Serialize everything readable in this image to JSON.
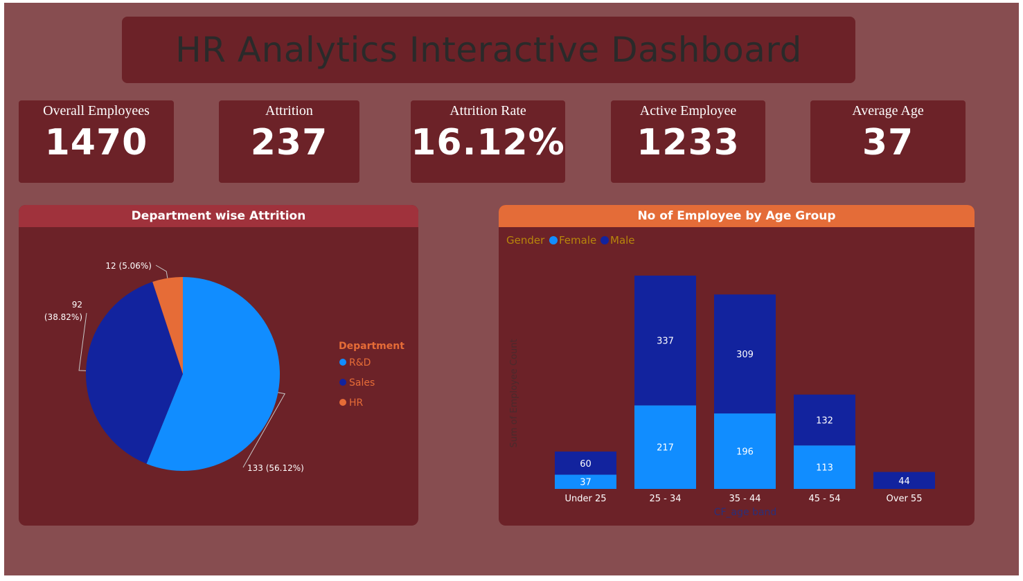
{
  "dashboard": {
    "title": "HR Analytics Interactive Dashboard"
  },
  "kpis": [
    {
      "label": "Overall Employees",
      "value": "1470"
    },
    {
      "label": "Attrition",
      "value": "237"
    },
    {
      "label": "Attrition Rate",
      "value": "16.12%"
    },
    {
      "label": "Active Employee",
      "value": "1233"
    },
    {
      "label": "Average Age",
      "value": "37"
    }
  ],
  "colors": {
    "background": "#874d50",
    "card": "#6c2228",
    "pie_header": "#a0323c",
    "bar_header": "#e46c38",
    "light_blue": "#118dff",
    "dark_blue": "#12239e",
    "orange": "#e66c37",
    "legend_label": "#b8860b"
  },
  "chart_data": [
    {
      "type": "pie",
      "title": "Department wise Attrition",
      "legend_title": "Department",
      "legend_position": "right",
      "slices": [
        {
          "label": "R&D",
          "value": 133,
          "data_label": "133 (56.12%)",
          "color": "#118dff"
        },
        {
          "label": "Sales",
          "value": 92,
          "data_label": "92 (38.82%)",
          "color": "#12239e"
        },
        {
          "label": "HR",
          "value": 12,
          "data_label": "12 (5.06%)",
          "color": "#e66c37"
        }
      ]
    },
    {
      "type": "bar",
      "stacked": true,
      "title": "No of Employee by Age Group",
      "legend_title": "Gender",
      "legend_position": "top-left",
      "xlabel": "CF_age band",
      "ylabel": "Sum of Employee Count",
      "categories": [
        "Under 25",
        "25 - 34",
        "35 - 44",
        "45 - 54",
        "Over 55"
      ],
      "series": [
        {
          "name": "Female",
          "color": "#118dff",
          "values": [
            37,
            217,
            196,
            113,
            null
          ]
        },
        {
          "name": "Male",
          "color": "#12239e",
          "values": [
            60,
            337,
            309,
            132,
            44
          ]
        }
      ],
      "ylim": [
        0,
        554
      ],
      "grid": false
    }
  ]
}
